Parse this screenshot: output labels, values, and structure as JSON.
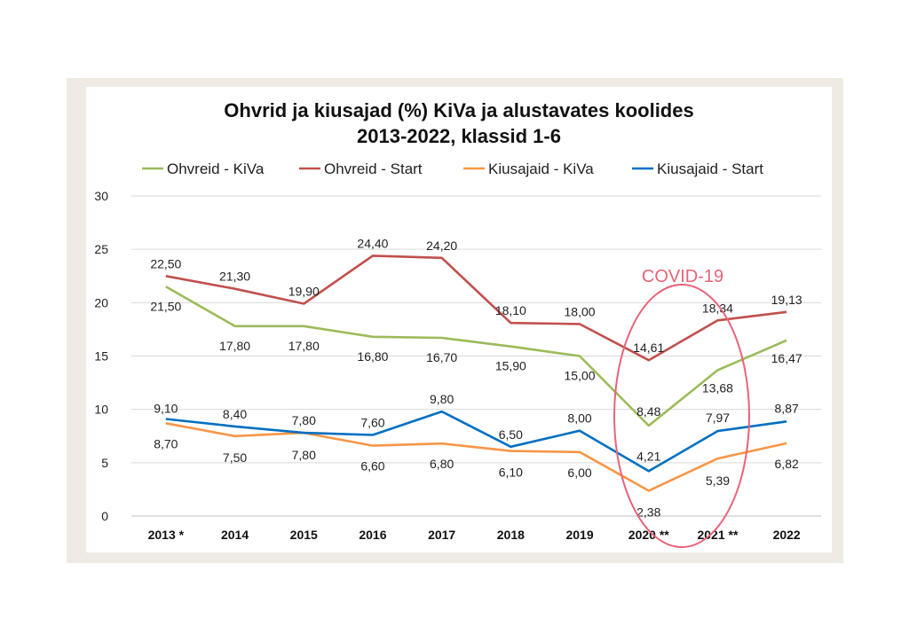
{
  "chart_data": {
    "type": "line",
    "title_line1": "Ohvrid ja kiusajad (%) KiVa ja alustavates koolides",
    "title_line2": "2013-2022, klassid 1-6",
    "categories": [
      "2013 *",
      "2014",
      "2015",
      "2016",
      "2017",
      "2018",
      "2019",
      "2020 **",
      "2021 **",
      "2022"
    ],
    "ylim": [
      0,
      30
    ],
    "yticks": [
      0,
      5,
      10,
      15,
      20,
      25,
      30
    ],
    "grid": true,
    "legend_position": "top",
    "series": [
      {
        "name": "Ohvreid - KiVa",
        "color": "#9bbb59",
        "values": [
          21.5,
          17.8,
          17.8,
          16.8,
          16.7,
          15.9,
          15.0,
          8.48,
          13.68,
          16.47
        ],
        "labels": [
          "21,50",
          "17,80",
          "17,80",
          "16,80",
          "16,70",
          "15,90",
          "15,00",
          "8,48",
          "13,68",
          "16,47"
        ]
      },
      {
        "name": "Ohvreid - Start",
        "color": "#c0504d",
        "values": [
          22.5,
          21.3,
          19.9,
          24.4,
          24.2,
          18.1,
          18.0,
          14.61,
          18.34,
          19.13
        ],
        "labels": [
          "22,50",
          "21,30",
          "19,90",
          "24,40",
          "24,20",
          "18,10",
          "18,00",
          "14,61",
          "18,34",
          "19,13"
        ]
      },
      {
        "name": "Kiusajaid - KiVa",
        "color": "#f79646",
        "values": [
          8.7,
          7.5,
          7.8,
          6.6,
          6.8,
          6.1,
          6.0,
          2.38,
          5.39,
          6.82
        ],
        "labels": [
          "8,70",
          "7,50",
          "7,80",
          "6,60",
          "6,80",
          "6,10",
          "6,00",
          "2,38",
          "5,39",
          "6,82"
        ]
      },
      {
        "name": "Kiusajaid - Start",
        "color": "#0070c0",
        "values": [
          9.1,
          8.4,
          7.8,
          7.6,
          9.8,
          6.5,
          8.0,
          4.21,
          7.97,
          8.87
        ],
        "labels": [
          "9,10",
          "8,40",
          "7,80",
          "7,60",
          "9,80",
          "6,50",
          "8,00",
          "4,21",
          "7,97",
          "8,87"
        ]
      }
    ],
    "annotation": {
      "text": "COVID-19",
      "color": "#e8637a"
    }
  }
}
